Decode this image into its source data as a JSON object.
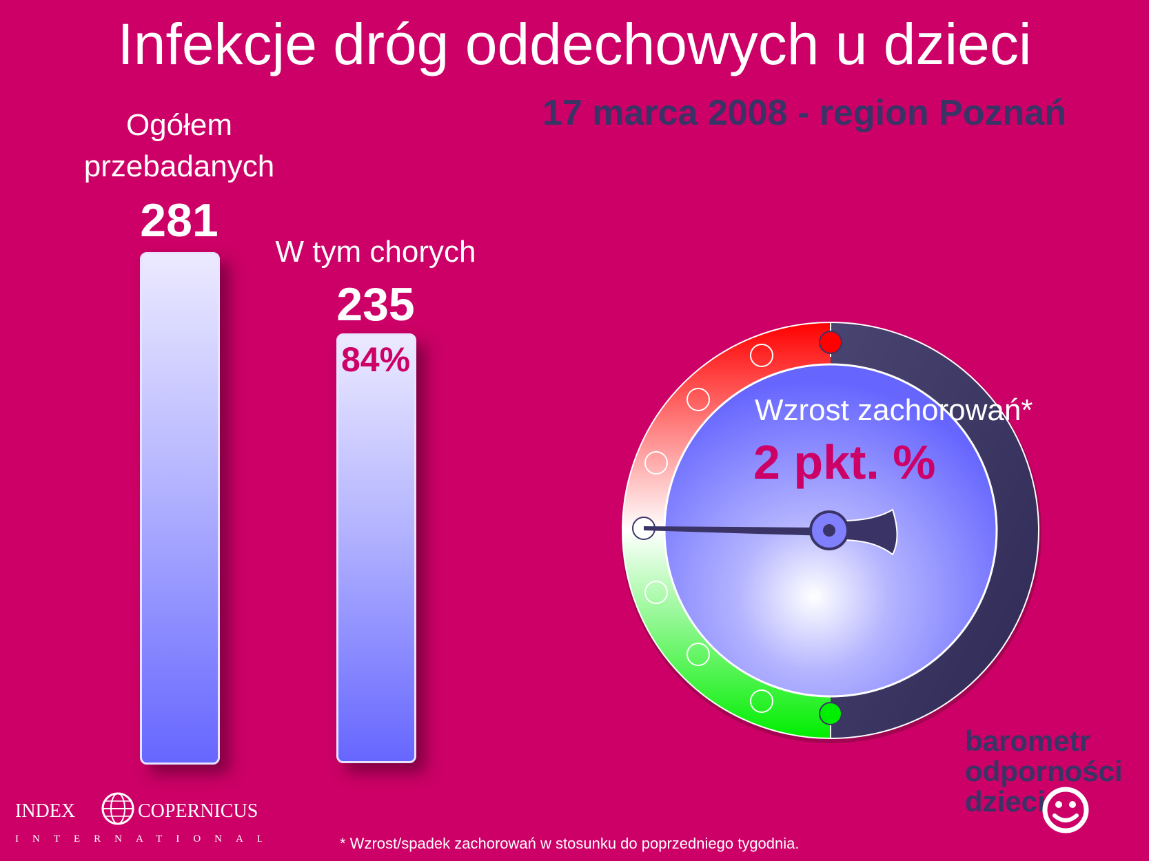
{
  "header": {
    "title": "Infekcje dróg oddechowych u dzieci",
    "subtitle": "17 marca 2008 - region Poznań"
  },
  "stats": {
    "total_label_line1": "Ogółem",
    "total_label_line2": "przebadanych",
    "total_value": "281",
    "sick_label": "W tym chorych",
    "sick_value": "235",
    "sick_percent": "84%"
  },
  "gauge": {
    "label": "Wzrost zachorowań*",
    "value": "2 pkt. %",
    "red_color": "#ff0000",
    "green_color": "#00ee00",
    "dark_color": "#3a3366",
    "face_color": "#6e6eff"
  },
  "brand": {
    "line1": "barometr",
    "line2": "odporności",
    "line3": "dzieci"
  },
  "logo": {
    "left": "INDEX",
    "right": "COPERNICUS",
    "sub": "INTERNATIONAL"
  },
  "footnote": "* Wzrost/spadek zachorowań w stosunku do poprzedniego tygodnia.",
  "colors": {
    "background": "#cc0066",
    "accent_dark": "#3a3366",
    "accent_magenta": "#cc0066"
  }
}
